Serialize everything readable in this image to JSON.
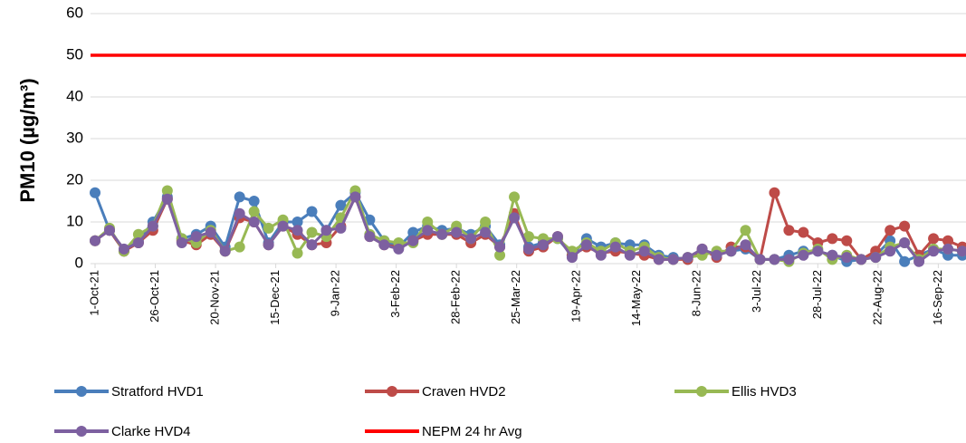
{
  "chart_data": {
    "type": "line",
    "y_label": "PM10 (µg/m³)",
    "ylim": [
      0,
      60
    ],
    "yticks": [
      0,
      10,
      20,
      30,
      40,
      50,
      60
    ],
    "grid": true,
    "xlim": [
      "1-Oct-21",
      "26-Sep-22"
    ],
    "xticks": [
      "1-Oct-21",
      "26-Oct-21",
      "20-Nov-21",
      "15-Dec-21",
      "9-Jan-22",
      "3-Feb-22",
      "28-Feb-22",
      "25-Mar-22",
      "19-Apr-22",
      "14-May-22",
      "8-Jun-22",
      "3-Jul-22",
      "28-Jul-22",
      "22-Aug-22",
      "16-Sep-22"
    ],
    "x": [
      "1-Oct-21",
      "7-Oct-21",
      "13-Oct-21",
      "19-Oct-21",
      "25-Oct-21",
      "31-Oct-21",
      "6-Nov-21",
      "12-Nov-21",
      "18-Nov-21",
      "24-Nov-21",
      "30-Nov-21",
      "6-Dec-21",
      "12-Dec-21",
      "18-Dec-21",
      "24-Dec-21",
      "30-Dec-21",
      "5-Jan-22",
      "11-Jan-22",
      "17-Jan-22",
      "23-Jan-22",
      "29-Jan-22",
      "4-Feb-22",
      "10-Feb-22",
      "16-Feb-22",
      "22-Feb-22",
      "28-Feb-22",
      "6-Mar-22",
      "12-Mar-22",
      "18-Mar-22",
      "24-Mar-22",
      "30-Mar-22",
      "5-Apr-22",
      "11-Apr-22",
      "17-Apr-22",
      "23-Apr-22",
      "29-Apr-22",
      "5-May-22",
      "11-May-22",
      "17-May-22",
      "23-May-22",
      "29-May-22",
      "4-Jun-22",
      "10-Jun-22",
      "16-Jun-22",
      "22-Jun-22",
      "28-Jun-22",
      "4-Jul-22",
      "10-Jul-22",
      "16-Jul-22",
      "22-Jul-22",
      "28-Jul-22",
      "3-Aug-22",
      "9-Aug-22",
      "15-Aug-22",
      "21-Aug-22",
      "27-Aug-22",
      "2-Sep-22",
      "8-Sep-22",
      "14-Sep-22",
      "20-Sep-22",
      "26-Sep-22"
    ],
    "series": [
      {
        "name": "Stratford HVD1",
        "color": "#4a7ebb",
        "values": [
          17,
          8,
          3,
          5.5,
          10,
          16,
          6,
          7,
          9,
          4,
          16,
          15,
          5,
          10,
          10,
          12.5,
          8,
          14,
          17,
          10.5,
          5.5,
          4,
          7.5,
          9,
          8,
          8.5,
          7,
          9,
          4.5,
          11,
          4,
          5,
          6,
          2,
          6,
          4,
          5,
          4.5,
          4.5,
          2,
          1.5,
          1,
          3,
          2.5,
          3,
          3.5,
          1,
          1,
          2,
          3,
          3,
          2,
          0.5,
          1,
          2,
          5.5,
          0.5,
          2,
          3.5,
          2,
          2
        ]
      },
      {
        "name": "Craven HVD2",
        "color": "#be4b48",
        "values": [
          5.5,
          8,
          3,
          5,
          8,
          15.5,
          5.5,
          4.5,
          7,
          3,
          11,
          10,
          4.5,
          9,
          7,
          4.5,
          5,
          9,
          16,
          6.5,
          4.5,
          4,
          5.5,
          7,
          7,
          7,
          5,
          7,
          4,
          12,
          3,
          4,
          6.5,
          2,
          4,
          2.5,
          3,
          2.5,
          2,
          1,
          1,
          1,
          3.5,
          1.5,
          4,
          4,
          1,
          17,
          8,
          7.5,
          5,
          6,
          5.5,
          1,
          3,
          8,
          9,
          2,
          6,
          5.5,
          4
        ]
      },
      {
        "name": "Ellis HVD3",
        "color": "#98b954",
        "values": [
          5.5,
          8.5,
          3,
          7,
          9,
          17.5,
          6,
          5,
          8,
          3,
          4,
          12.5,
          8.5,
          10.5,
          2.5,
          7.5,
          6.5,
          11,
          17.5,
          7,
          5.5,
          5,
          5,
          10,
          7,
          9,
          6,
          10,
          2,
          16,
          6.5,
          6,
          6,
          3,
          5,
          3,
          5,
          3,
          4,
          1.5,
          1,
          1.5,
          2,
          3,
          3,
          8,
          1,
          1,
          0.5,
          2.5,
          3.5,
          1,
          2,
          1,
          1.5,
          4,
          5,
          1,
          3.5,
          3.5,
          3
        ]
      },
      {
        "name": "Clarke HVD4",
        "color": "#7d60a0",
        "values": [
          5.5,
          8,
          3.5,
          5,
          9,
          15.5,
          5,
          6.5,
          7.5,
          3,
          12,
          10,
          4.5,
          9,
          8,
          4.5,
          8,
          8.5,
          16,
          6.5,
          4.5,
          3.5,
          5.5,
          8,
          7,
          7.5,
          6,
          7.5,
          4,
          11,
          3.5,
          4.5,
          6.5,
          1.5,
          4.5,
          2,
          4,
          2,
          3,
          1,
          1,
          1.5,
          3.5,
          2,
          3,
          4.5,
          1,
          1,
          1,
          2,
          3,
          2,
          1.5,
          1,
          1.5,
          3,
          5,
          0.5,
          3,
          3.5,
          3
        ]
      }
    ],
    "reference_lines": [
      {
        "name": "NEPM 24 hr Avg",
        "value": 50,
        "color": "#ff0000"
      }
    ]
  }
}
